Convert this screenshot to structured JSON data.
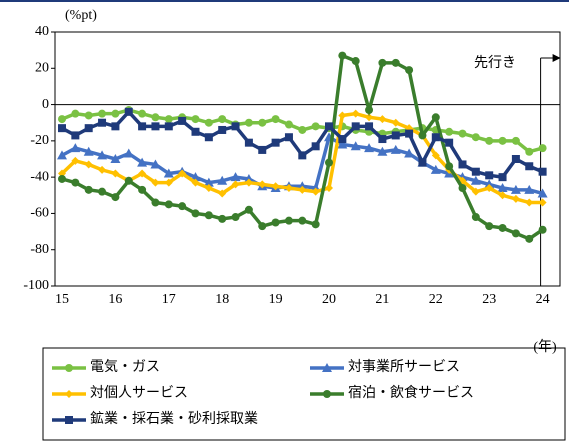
{
  "chart_data": {
    "type": "line",
    "y_label": "(%pt)",
    "x_label": "(年)",
    "annotation": "先行き",
    "categories": [
      "15",
      null,
      null,
      null,
      "16",
      null,
      null,
      null,
      "17",
      null,
      null,
      null,
      "18",
      null,
      null,
      null,
      "19",
      null,
      null,
      null,
      "20",
      null,
      null,
      null,
      "21",
      null,
      null,
      null,
      "22",
      null,
      null,
      null,
      "23",
      null,
      null,
      null,
      "24"
    ],
    "ylim": [
      -100,
      40
    ],
    "yticks": [
      -100,
      -80,
      -60,
      -40,
      -20,
      0,
      20,
      40
    ],
    "legend": "bottom",
    "series": [
      {
        "name": "電気・ガス",
        "color": "#7ac143",
        "marker": "circle",
        "values": [
          -8,
          -5,
          -6,
          -5,
          -5,
          -3,
          -5,
          -7,
          -8,
          -7,
          -8,
          -10,
          -8,
          -11,
          -10,
          -10,
          -8,
          -11,
          -14,
          -12,
          -13,
          -12,
          -14,
          -15,
          -16,
          -15,
          -14,
          -13,
          -14,
          -15,
          -16,
          -18,
          -20,
          -20,
          -20,
          -26,
          -24
        ]
      },
      {
        "name": "対事業所サービス",
        "color": "#4472c4",
        "marker": "triangle",
        "values": [
          -28,
          -24,
          -26,
          -28,
          -30,
          -27,
          -32,
          -33,
          -38,
          -37,
          -40,
          -43,
          -42,
          -40,
          -41,
          -45,
          -46,
          -45,
          -45,
          -46,
          -18,
          -22,
          -23,
          -24,
          -26,
          -25,
          -27,
          -32,
          -36,
          -38,
          -40,
          -42,
          -44,
          -46,
          -47,
          -47,
          -49
        ]
      },
      {
        "name": "対個人サービス",
        "color": "#ffc000",
        "marker": "diamond",
        "values": [
          -38,
          -31,
          -33,
          -36,
          -38,
          -42,
          -38,
          -43,
          -43,
          -38,
          -43,
          -46,
          -49,
          -44,
          -43,
          -44,
          -45,
          -46,
          -47,
          -48,
          -46,
          -6,
          -5,
          -7,
          -8,
          -10,
          -13,
          -17,
          -28,
          -36,
          -42,
          -48,
          -46,
          -50,
          -52,
          -54,
          -54
        ]
      },
      {
        "name": "宿泊・飲食サービス",
        "color": "#3a7d2c",
        "marker": "circle",
        "values": [
          -41,
          -43,
          -47,
          -48,
          -51,
          -42,
          -47,
          -54,
          -55,
          -56,
          -60,
          -61,
          -63,
          -62,
          -58,
          -67,
          -65,
          -64,
          -64,
          -66,
          -32,
          27,
          24,
          -3,
          23,
          23,
          19,
          -17,
          -7,
          -34,
          -46,
          -62,
          -67,
          -68,
          -71,
          -74,
          -69
        ]
      },
      {
        "name": "鉱業・採石業・砂利採取業",
        "color": "#1f3a7a",
        "marker": "square",
        "values": [
          -13,
          -17,
          -13,
          -10,
          -12,
          -4,
          -12,
          -12,
          -12,
          -9,
          -15,
          -18,
          -14,
          -12,
          -21,
          -25,
          -21,
          -18,
          -28,
          -23,
          -12,
          -19,
          -12,
          -12,
          -19,
          -17,
          -16,
          -32,
          -18,
          -21,
          -33,
          -37,
          -39,
          -40,
          -30,
          -34,
          -37
        ]
      }
    ]
  }
}
